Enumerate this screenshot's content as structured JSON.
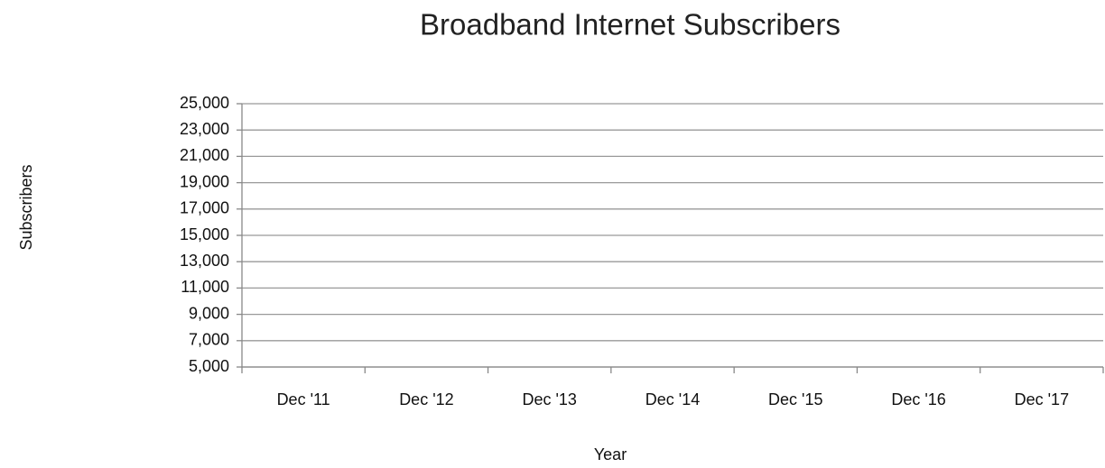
{
  "chart_data": {
    "type": "line",
    "title": "Broadband Internet Subscribers",
    "x_label": "Year",
    "y_label": "Subscribers",
    "categories": [
      "Dec '11",
      "Dec '12",
      "Dec '13",
      "Dec '14",
      "Dec '15",
      "Dec '16",
      "Dec '17"
    ],
    "ylim": [
      5000,
      25000
    ],
    "yticks": [
      {
        "value": 5000,
        "label": "5,000"
      },
      {
        "value": 7000,
        "label": "7,000"
      },
      {
        "value": 9000,
        "label": "9,000"
      },
      {
        "value": 11000,
        "label": "11,000"
      },
      {
        "value": 13000,
        "label": "13,000"
      },
      {
        "value": 15000,
        "label": "15,000"
      },
      {
        "value": 17000,
        "label": "17,000"
      },
      {
        "value": 19000,
        "label": "19,000"
      },
      {
        "value": 21000,
        "label": "21,000"
      },
      {
        "value": 23000,
        "label": "23,000"
      },
      {
        "value": 25000,
        "label": "25,000"
      }
    ],
    "grid": true
  }
}
